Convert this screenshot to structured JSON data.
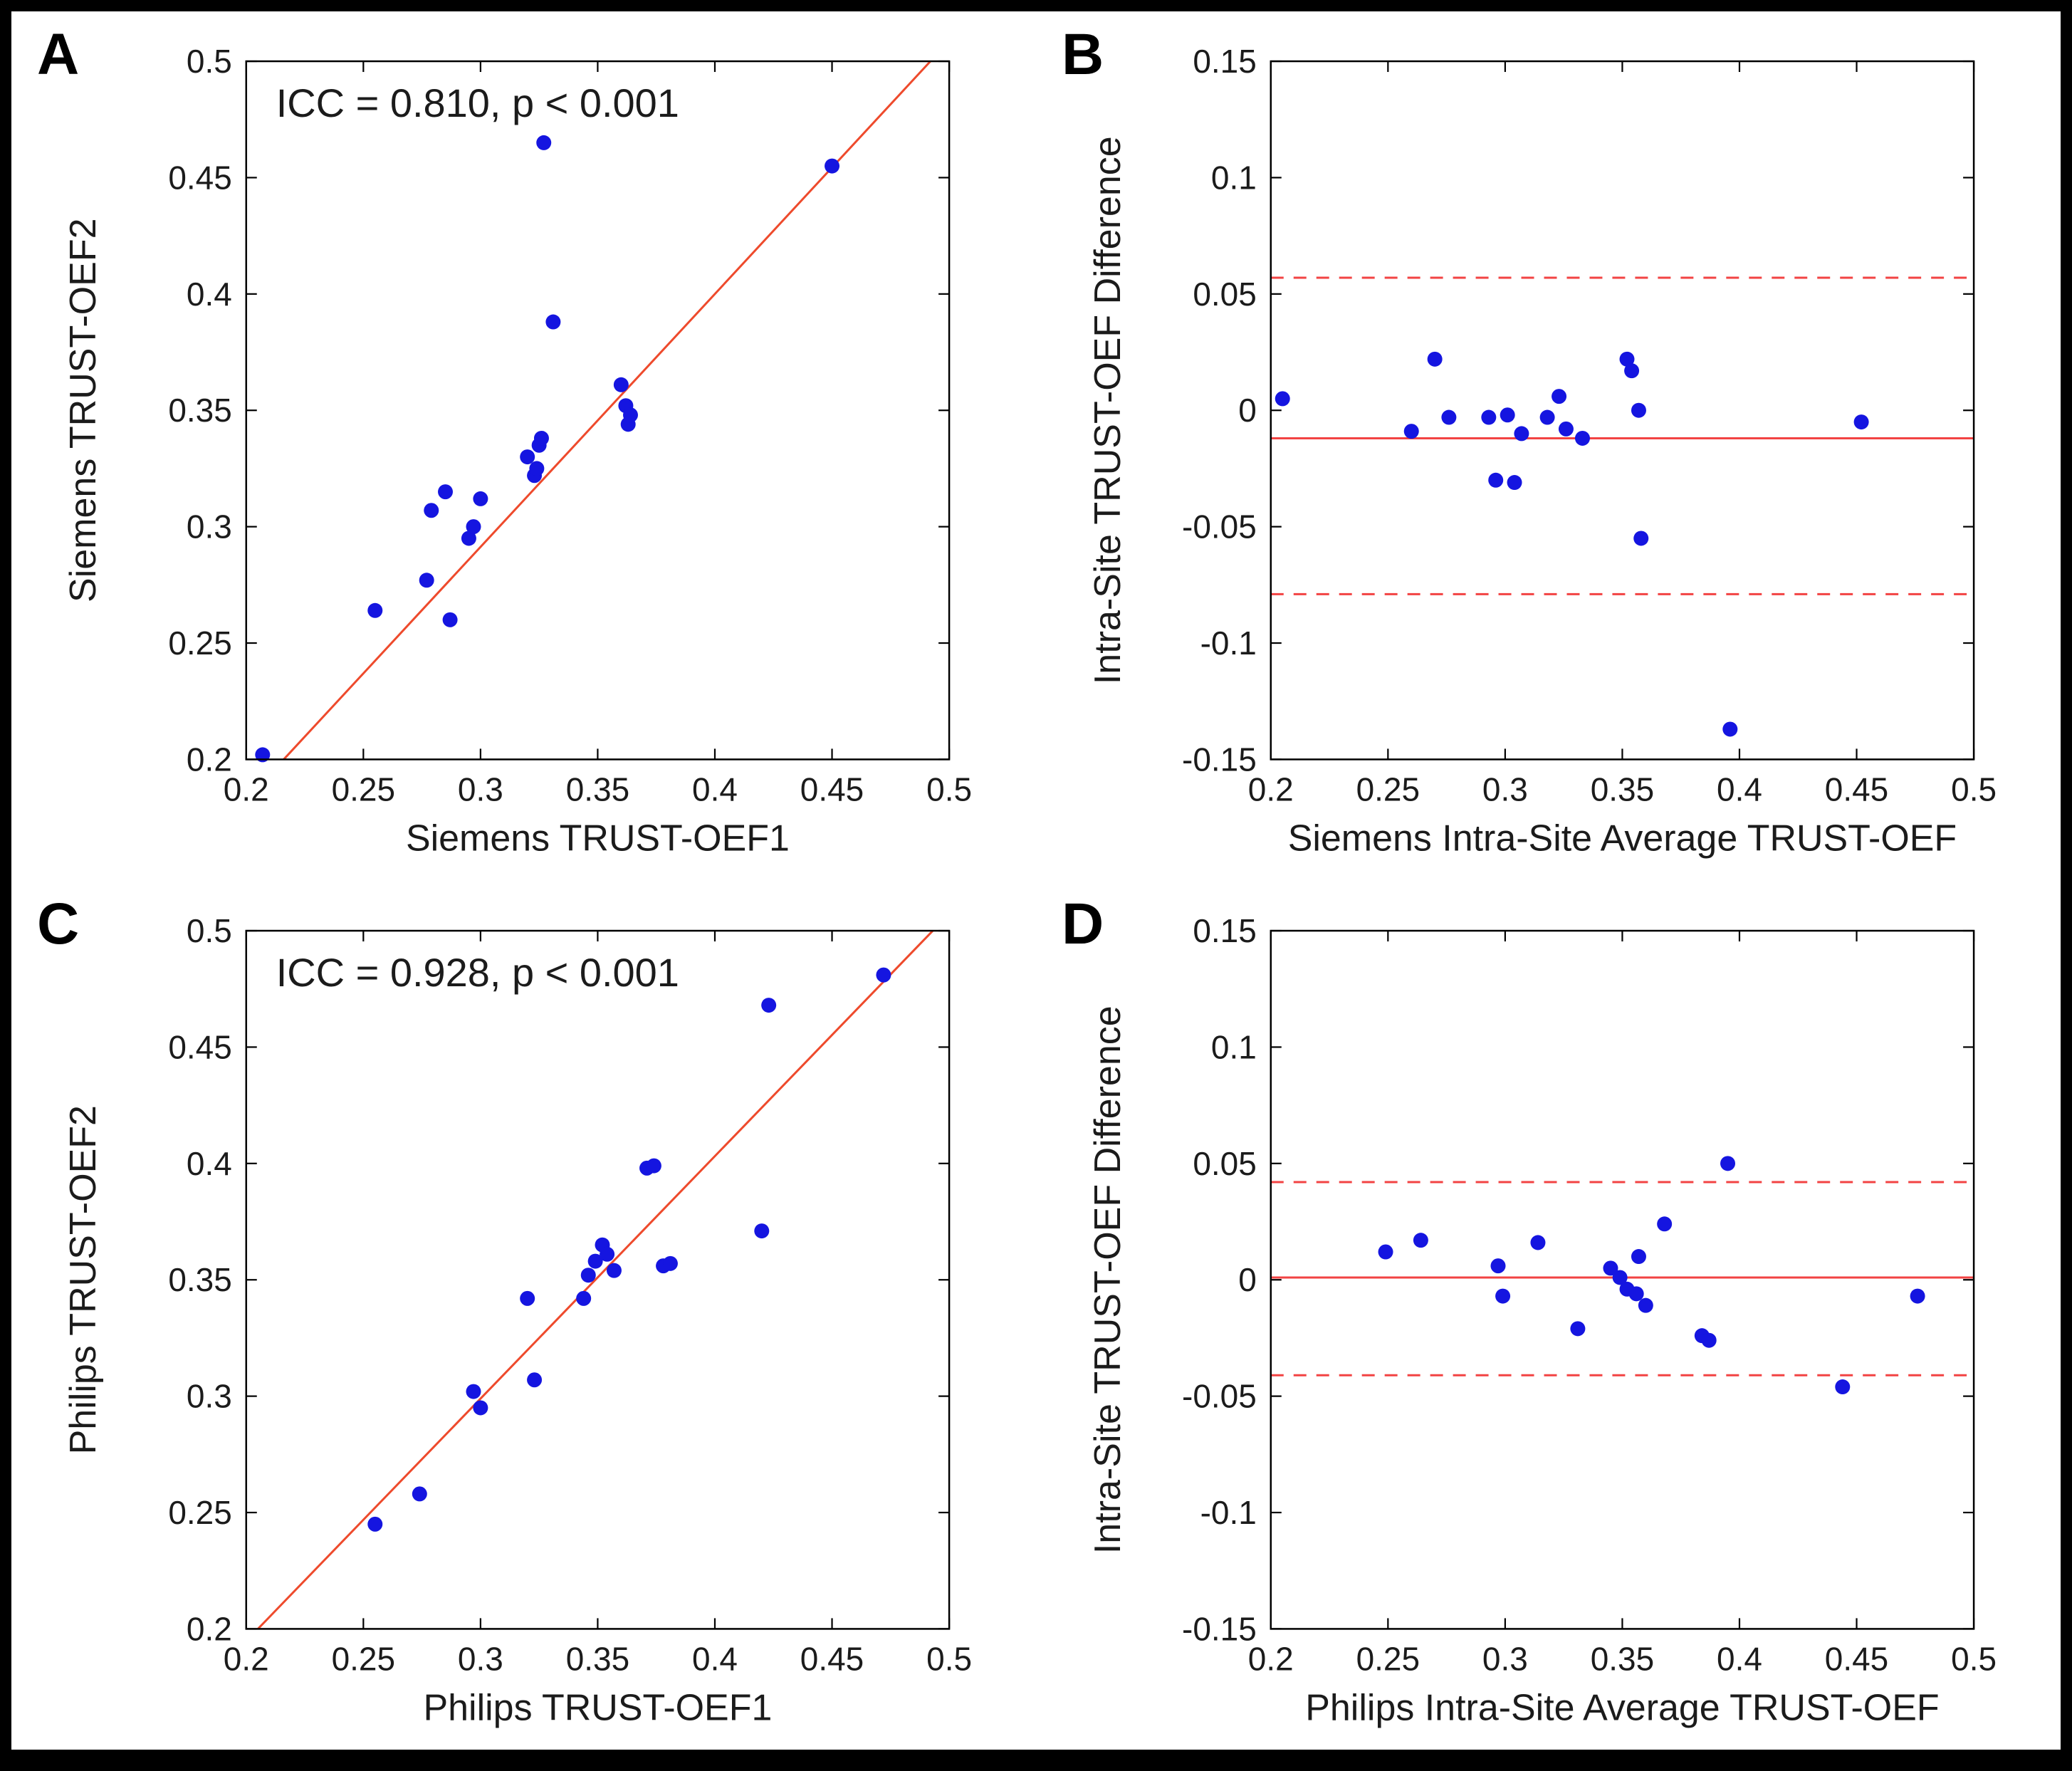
{
  "figure": {
    "background": "#ffffff",
    "frame_color": "#000000"
  },
  "chart_data": [
    {
      "panel": "A",
      "type": "scatter",
      "annotation": "ICC = 0.810, p < 0.001",
      "xlabel": "Siemens TRUST-OEF1",
      "ylabel": "Siemens TRUST-OEF2",
      "xlim": [
        0.2,
        0.5
      ],
      "ylim": [
        0.2,
        0.5
      ],
      "xticks": [
        0.2,
        0.25,
        0.3,
        0.35,
        0.4,
        0.45,
        0.5
      ],
      "xtick_labels": [
        "0.2",
        "0.25",
        "0.3",
        "0.35",
        "0.4",
        "0.45",
        "0.5"
      ],
      "yticks": [
        0.2,
        0.25,
        0.3,
        0.35,
        0.4,
        0.45,
        0.5
      ],
      "ytick_labels": [
        "0.2",
        "0.25",
        "0.3",
        "0.35",
        "0.4",
        "0.45",
        "0.5"
      ],
      "point_color": "#1515e0",
      "line_color": "#ee4a2c",
      "identity_line": [
        [
          0.216,
          0.2
        ],
        [
          0.492,
          0.5
        ]
      ],
      "points": [
        [
          0.207,
          0.202
        ],
        [
          0.255,
          0.264
        ],
        [
          0.277,
          0.277
        ],
        [
          0.279,
          0.307
        ],
        [
          0.285,
          0.315
        ],
        [
          0.287,
          0.26
        ],
        [
          0.295,
          0.295
        ],
        [
          0.297,
          0.3
        ],
        [
          0.3,
          0.312
        ],
        [
          0.32,
          0.33
        ],
        [
          0.323,
          0.322
        ],
        [
          0.324,
          0.325
        ],
        [
          0.325,
          0.335
        ],
        [
          0.326,
          0.338
        ],
        [
          0.327,
          0.465
        ],
        [
          0.331,
          0.388
        ],
        [
          0.36,
          0.361
        ],
        [
          0.362,
          0.352
        ],
        [
          0.363,
          0.344
        ],
        [
          0.364,
          0.348
        ],
        [
          0.45,
          0.455
        ]
      ]
    },
    {
      "panel": "B",
      "type": "bland_altman",
      "xlabel": "Siemens Intra-Site Average TRUST-OEF",
      "ylabel": "Intra-Site TRUST-OEF Difference",
      "xlim": [
        0.2,
        0.5
      ],
      "ylim": [
        -0.15,
        0.15
      ],
      "xticks": [
        0.2,
        0.25,
        0.3,
        0.35,
        0.4,
        0.45,
        0.5
      ],
      "xtick_labels": [
        "0.2",
        "0.25",
        "0.3",
        "0.35",
        "0.4",
        "0.45",
        "0.5"
      ],
      "yticks": [
        -0.15,
        -0.1,
        -0.05,
        0,
        0.05,
        0.1,
        0.15
      ],
      "ytick_labels": [
        "-0.15",
        "-0.1",
        "-0.05",
        "0",
        "0.05",
        "0.1",
        "0.15"
      ],
      "point_color": "#1515e0",
      "line_color": "#f24343",
      "mean_line": -0.012,
      "upper_loa": 0.057,
      "lower_loa": -0.079,
      "points": [
        [
          0.205,
          0.005
        ],
        [
          0.26,
          -0.009
        ],
        [
          0.27,
          0.022
        ],
        [
          0.276,
          -0.003
        ],
        [
          0.293,
          -0.003
        ],
        [
          0.296,
          -0.03
        ],
        [
          0.301,
          -0.002
        ],
        [
          0.304,
          -0.031
        ],
        [
          0.307,
          -0.01
        ],
        [
          0.318,
          -0.003
        ],
        [
          0.323,
          0.006
        ],
        [
          0.326,
          -0.008
        ],
        [
          0.333,
          -0.012
        ],
        [
          0.352,
          0.022
        ],
        [
          0.354,
          0.017
        ],
        [
          0.357,
          0.0
        ],
        [
          0.358,
          -0.055
        ],
        [
          0.396,
          -0.137
        ],
        [
          0.452,
          -0.005
        ]
      ]
    },
    {
      "panel": "C",
      "type": "scatter",
      "annotation": "ICC = 0.928, p < 0.001",
      "xlabel": "Philips TRUST-OEF1",
      "ylabel": "Philips TRUST-OEF2",
      "xlim": [
        0.2,
        0.5
      ],
      "ylim": [
        0.2,
        0.5
      ],
      "xticks": [
        0.2,
        0.25,
        0.3,
        0.35,
        0.4,
        0.45,
        0.5
      ],
      "xtick_labels": [
        "0.2",
        "0.25",
        "0.3",
        "0.35",
        "0.4",
        "0.45",
        "0.5"
      ],
      "yticks": [
        0.2,
        0.25,
        0.3,
        0.35,
        0.4,
        0.45,
        0.5
      ],
      "ytick_labels": [
        "0.2",
        "0.25",
        "0.3",
        "0.35",
        "0.4",
        "0.45",
        "0.5"
      ],
      "point_color": "#1515e0",
      "line_color": "#ee4a2c",
      "identity_line": [
        [
          0.205,
          0.2
        ],
        [
          0.493,
          0.5
        ]
      ],
      "points": [
        [
          0.255,
          0.245
        ],
        [
          0.274,
          0.258
        ],
        [
          0.297,
          0.302
        ],
        [
          0.3,
          0.295
        ],
        [
          0.32,
          0.342
        ],
        [
          0.323,
          0.307
        ],
        [
          0.344,
          0.342
        ],
        [
          0.346,
          0.352
        ],
        [
          0.349,
          0.358
        ],
        [
          0.352,
          0.365
        ],
        [
          0.354,
          0.361
        ],
        [
          0.357,
          0.354
        ],
        [
          0.371,
          0.398
        ],
        [
          0.374,
          0.399
        ],
        [
          0.378,
          0.356
        ],
        [
          0.381,
          0.357
        ],
        [
          0.42,
          0.371
        ],
        [
          0.423,
          0.468
        ],
        [
          0.472,
          0.481
        ]
      ]
    },
    {
      "panel": "D",
      "type": "bland_altman",
      "xlabel": "Philips Intra-Site Average TRUST-OEF",
      "ylabel": "Intra-Site TRUST-OEF Difference",
      "xlim": [
        0.2,
        0.5
      ],
      "ylim": [
        -0.15,
        0.15
      ],
      "xticks": [
        0.2,
        0.25,
        0.3,
        0.35,
        0.4,
        0.45,
        0.5
      ],
      "xtick_labels": [
        "0.2",
        "0.25",
        "0.3",
        "0.35",
        "0.4",
        "0.45",
        "0.5"
      ],
      "yticks": [
        -0.15,
        -0.1,
        -0.05,
        0,
        0.05,
        0.1,
        0.15
      ],
      "ytick_labels": [
        "-0.15",
        "-0.1",
        "-0.05",
        "0",
        "0.05",
        "0.1",
        "0.15"
      ],
      "point_color": "#1515e0",
      "line_color": "#f24343",
      "mean_line": 0.001,
      "upper_loa": 0.042,
      "lower_loa": -0.041,
      "points": [
        [
          0.249,
          0.012
        ],
        [
          0.264,
          0.017
        ],
        [
          0.297,
          0.006
        ],
        [
          0.299,
          -0.007
        ],
        [
          0.314,
          0.016
        ],
        [
          0.331,
          -0.021
        ],
        [
          0.345,
          0.005
        ],
        [
          0.349,
          0.001
        ],
        [
          0.352,
          -0.004
        ],
        [
          0.356,
          -0.006
        ],
        [
          0.357,
          0.01
        ],
        [
          0.36,
          -0.011
        ],
        [
          0.368,
          0.024
        ],
        [
          0.384,
          -0.024
        ],
        [
          0.387,
          -0.026
        ],
        [
          0.395,
          0.05
        ],
        [
          0.444,
          -0.046
        ],
        [
          0.476,
          -0.007
        ]
      ]
    }
  ]
}
